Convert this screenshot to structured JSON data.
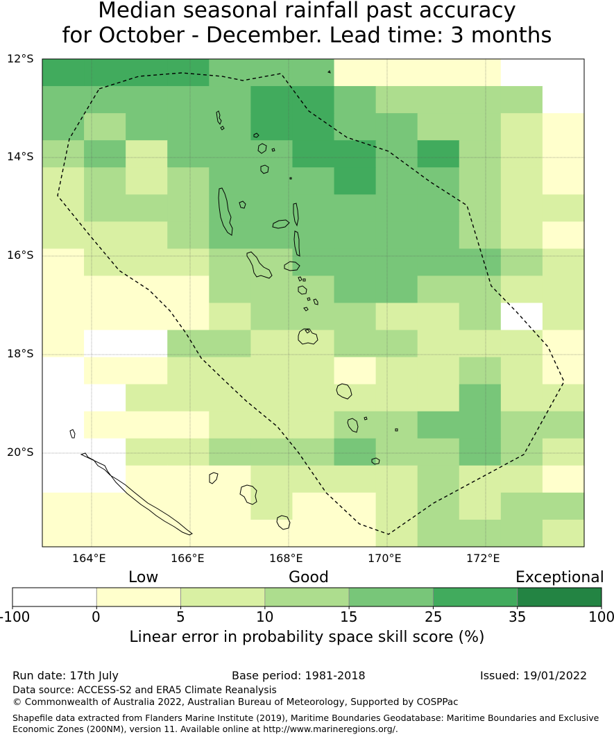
{
  "title": {
    "line1": "Median seasonal rainfall past accuracy",
    "line2": "for October - December. Lead time: 3 months"
  },
  "map": {
    "lat_labels": [
      "12°S",
      "14°S",
      "16°S",
      "18°S",
      "20°S"
    ],
    "lon_labels": [
      "164°E",
      "166°E",
      "168°E",
      "170°E",
      "172°E"
    ],
    "boundary": "dashed",
    "legend_colors": [
      "#ffffff",
      "#ffffcc",
      "#d9f0a3",
      "#addd8e",
      "#78c679",
      "#41ab5d",
      "#238443"
    ]
  },
  "colorbar": {
    "category_labels": [
      "Low",
      "Good",
      "Exceptional"
    ],
    "tick_labels": [
      "-100",
      "0",
      "5",
      "10",
      "15",
      "25",
      "35",
      "100"
    ],
    "axis_label": "Linear error in probability space skill score (%)"
  },
  "footer": {
    "run_date": "Run date: 17th July",
    "base_period": "Base period: 1981-2018",
    "issued": "Issued: 19/01/2022",
    "data_source": "Data source: ACCESS-S2 and ERA5 Climate Reanalysis",
    "copyright": "© Commonwealth of Australia 2022, Australian Bureau of Meteorology, Supported by COSPPac",
    "shapefile_line1": "Shapefile data extracted from Flanders Marine Institute (2019), Maritime Boundaries Geodatabase: Maritime Boundaries and Exclusive",
    "shapefile_line2": "Economic Zones (200NM), version 11. Available online at http://www.marineregions.org/."
  }
}
